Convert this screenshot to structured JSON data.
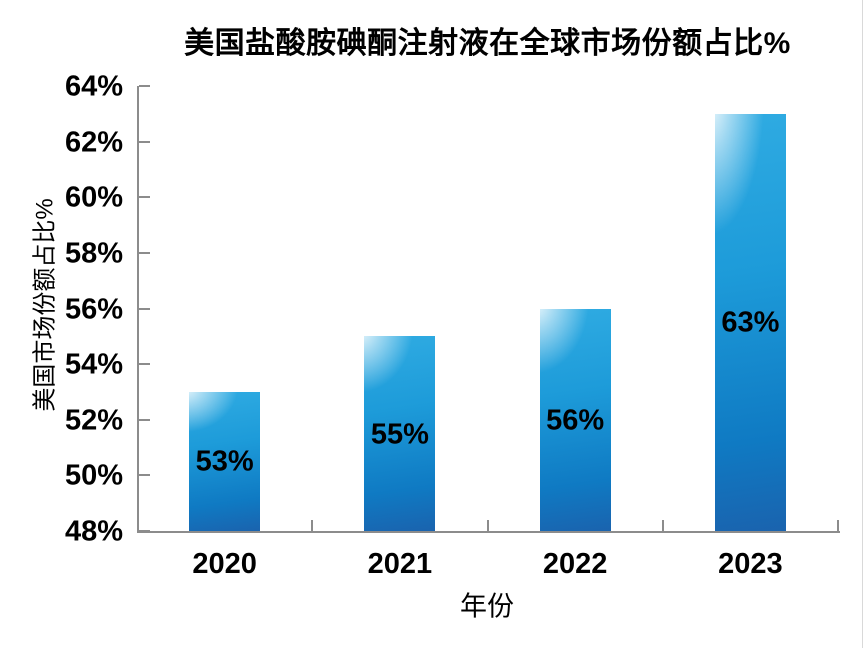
{
  "chart_data": {
    "type": "bar",
    "title": "美国盐酸胺碘酮注射液在全球市场份额占比%",
    "xlabel": "年份",
    "ylabel": "美国市场份额占比%",
    "categories": [
      "2020",
      "2021",
      "2022",
      "2023"
    ],
    "values": [
      53,
      55,
      56,
      63
    ],
    "data_labels": [
      "53%",
      "55%",
      "56%",
      "63%"
    ],
    "ylim": [
      48,
      64
    ],
    "ytick_step": 2,
    "ytick_labels": [
      "48%",
      "50%",
      "52%",
      "54%",
      "56%",
      "58%",
      "60%",
      "62%",
      "64%"
    ],
    "grid": false,
    "legend": false,
    "colors": {
      "bar_highlight": "#ffffff",
      "bar_light": "#2fabe2",
      "bar_mid": "#1d9bd9",
      "bar_dark": "#0f7ac3",
      "bar_bottom": "#1a63ae",
      "axis": "#8c8c8c",
      "text": "#000000",
      "background": "#ffffff"
    }
  }
}
